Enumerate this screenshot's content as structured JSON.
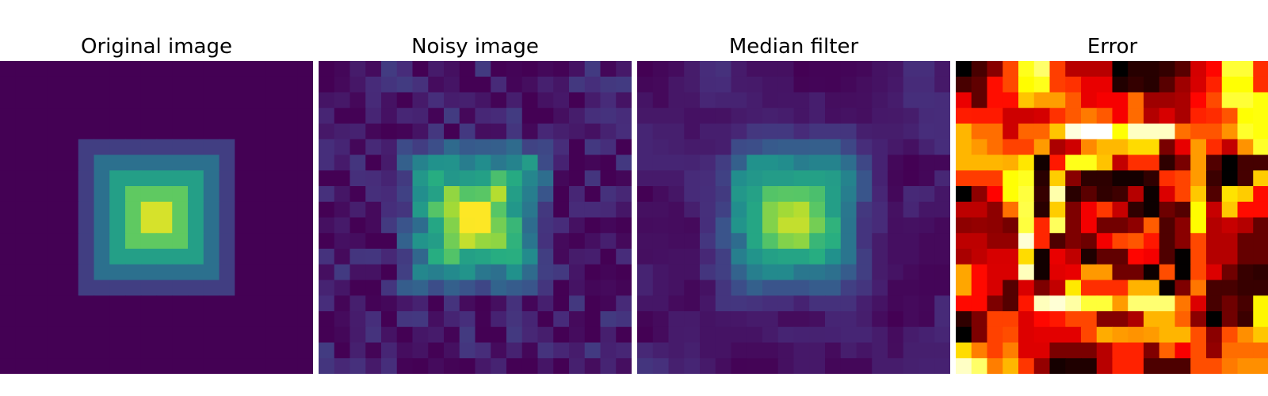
{
  "figure": {
    "panels": [
      {
        "title": "Original image",
        "colormap": "viridis",
        "source": "original"
      },
      {
        "title": "Noisy image",
        "colormap": "viridis",
        "source": "noisy"
      },
      {
        "title": "Median filter",
        "colormap": "viridis",
        "source": "median"
      },
      {
        "title": "Error",
        "colormap": "hot",
        "source": "error"
      }
    ],
    "grid_size": 20,
    "colors": {
      "viridis_low": "#440154",
      "viridis_high": "#fde725",
      "hot_low": "#000000",
      "hot_high": "#ffffff"
    }
  },
  "chart_data": {
    "type": "heatmap",
    "grid_size": 20,
    "levels": [
      0,
      1,
      2,
      3,
      4
    ],
    "error_max": 1
  }
}
